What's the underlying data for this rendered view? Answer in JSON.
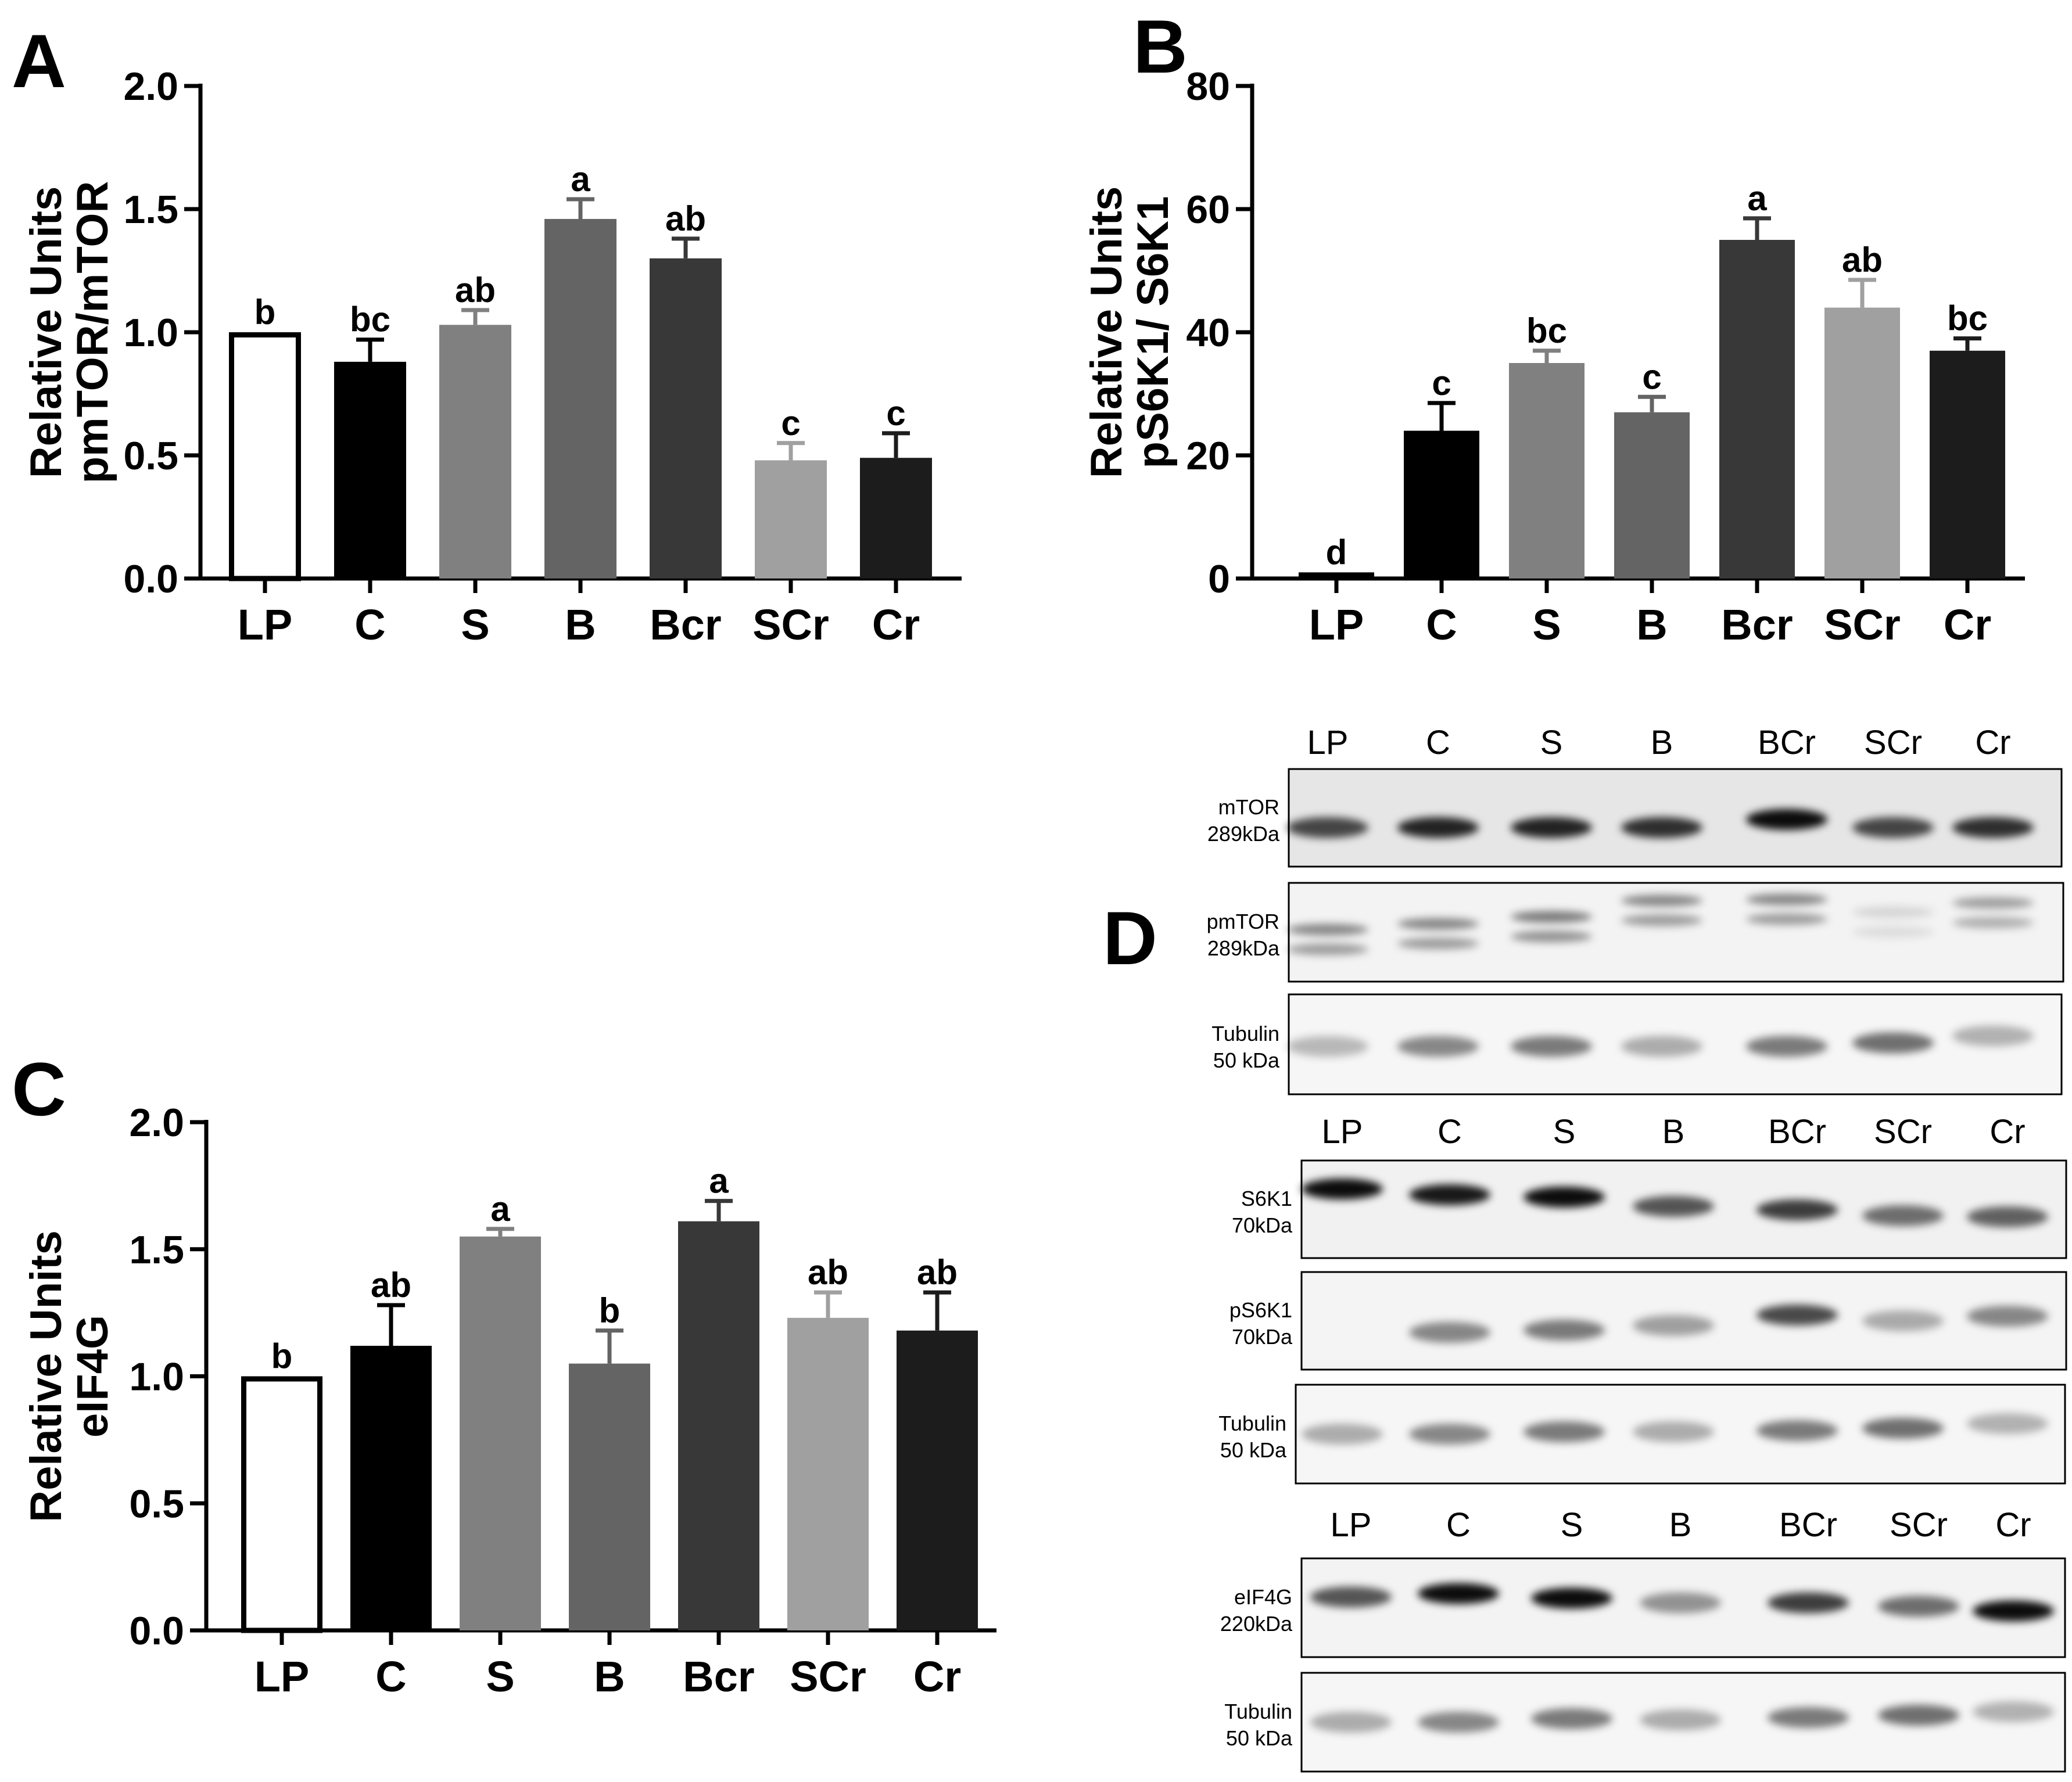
{
  "panels": {
    "a": "A",
    "b": "B",
    "c": "C",
    "d": "D"
  },
  "chart_data": [
    {
      "id": "A",
      "type": "bar",
      "categories": [
        "LP",
        "C",
        "S",
        "B",
        "Bcr",
        "SCr",
        "Cr"
      ],
      "values": [
        1.0,
        0.88,
        1.03,
        1.46,
        1.3,
        0.48,
        0.49
      ],
      "errors": [
        0.0,
        0.09,
        0.06,
        0.08,
        0.08,
        0.07,
        0.1
      ],
      "significance": [
        "b",
        "bc",
        "ab",
        "a",
        "ab",
        "c",
        "c"
      ],
      "bar_colors": [
        "#ffffff",
        "#000000",
        "#808080",
        "#646464",
        "#383838",
        "#a0a0a0",
        "#1c1c1c"
      ],
      "ylabel_line1": "Relative Units",
      "ylabel_line2": "pmTOR/mTOR",
      "ylim": [
        0,
        2.0
      ],
      "yticks": [
        "0.0",
        "0.5",
        "1.0",
        "1.5",
        "2.0"
      ]
    },
    {
      "id": "B",
      "type": "bar",
      "categories": [
        "LP",
        "C",
        "S",
        "B",
        "Bcr",
        "SCr",
        "Cr"
      ],
      "values": [
        1.0,
        24,
        35,
        27,
        55,
        44,
        37
      ],
      "errors": [
        0.0,
        4.5,
        2.0,
        2.5,
        3.5,
        4.5,
        2.0
      ],
      "significance": [
        "d",
        "c",
        "bc",
        "c",
        "a",
        "ab",
        "bc"
      ],
      "bar_colors": [
        "#000000",
        "#000000",
        "#808080",
        "#646464",
        "#383838",
        "#a0a0a0",
        "#1c1c1c"
      ],
      "ylabel_line1": "Relative Units",
      "ylabel_line2": "pS6K1/ S6K1",
      "ylim": [
        0,
        80
      ],
      "yticks": [
        "0",
        "20",
        "40",
        "60",
        "80"
      ]
    },
    {
      "id": "C",
      "type": "bar",
      "categories": [
        "LP",
        "C",
        "S",
        "B",
        "Bcr",
        "SCr",
        "Cr"
      ],
      "values": [
        1.0,
        1.12,
        1.55,
        1.05,
        1.61,
        1.23,
        1.18
      ],
      "errors": [
        0.0,
        0.16,
        0.03,
        0.13,
        0.08,
        0.1,
        0.15
      ],
      "significance": [
        "b",
        "ab",
        "a",
        "b",
        "a",
        "ab",
        "ab"
      ],
      "bar_colors": [
        "#ffffff",
        "#000000",
        "#808080",
        "#646464",
        "#383838",
        "#a0a0a0",
        "#1c1c1c"
      ],
      "ylabel_line1": "Relative Units",
      "ylabel_line2": "eIF4G",
      "ylim": [
        0,
        2.0
      ],
      "yticks": [
        "0.0",
        "0.5",
        "1.0",
        "1.5",
        "2.0"
      ]
    }
  ],
  "blots": [
    {
      "lanes": [
        "LP",
        "C",
        "S",
        "B",
        "BCr",
        "SCr",
        "Cr"
      ],
      "rows": [
        {
          "name": "mTOR",
          "mw": "289kDa"
        },
        {
          "name": "pmTOR",
          "mw": "289kDa"
        },
        {
          "name": "Tubulin",
          "mw": "50 kDa"
        }
      ]
    },
    {
      "lanes": [
        "LP",
        "C",
        "S",
        "B",
        "BCr",
        "SCr",
        "Cr"
      ],
      "rows": [
        {
          "name": "S6K1",
          "mw": "70kDa"
        },
        {
          "name": "pS6K1",
          "mw": "70kDa"
        },
        {
          "name": "Tubulin",
          "mw": "50 kDa"
        }
      ]
    },
    {
      "lanes": [
        "LP",
        "C",
        "S",
        "B",
        "BCr",
        "SCr",
        "Cr"
      ],
      "rows": [
        {
          "name": "eIF4G",
          "mw": "220kDa"
        },
        {
          "name": "Tubulin",
          "mw": "50 kDa"
        }
      ]
    }
  ]
}
